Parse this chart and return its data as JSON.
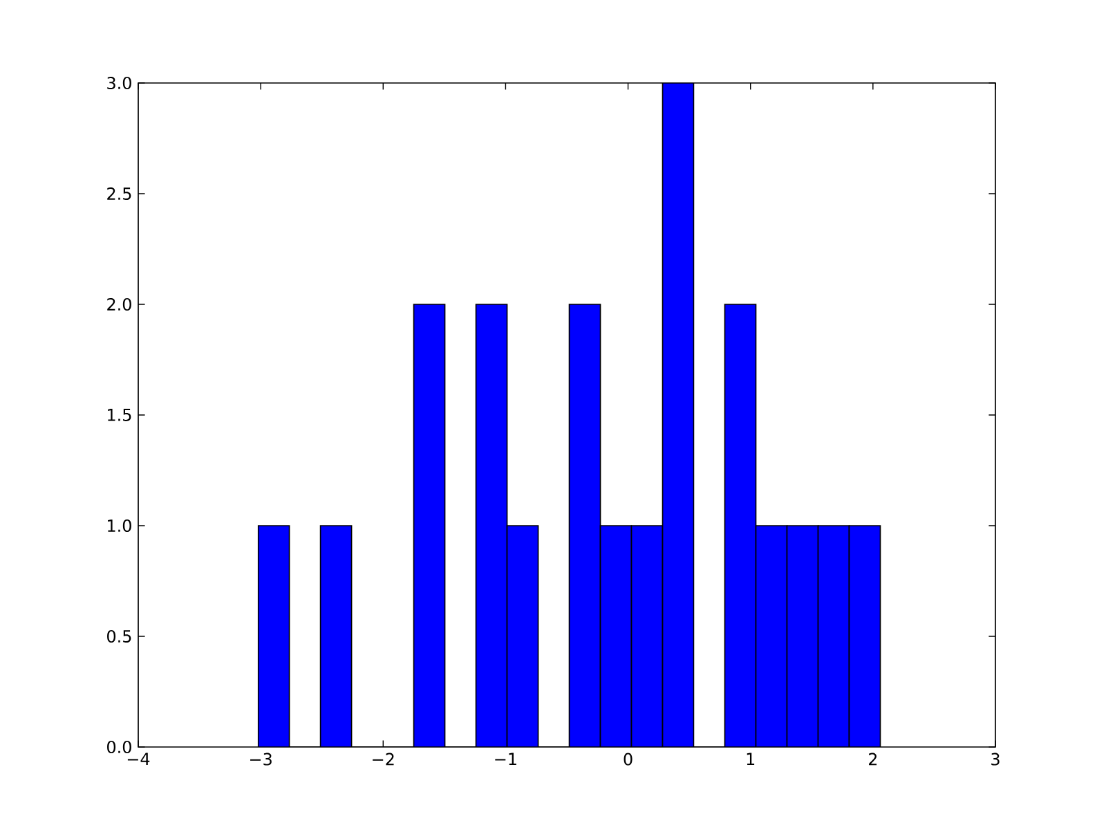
{
  "chart_data": {
    "type": "histogram",
    "bins": [
      -3.02,
      -2.766,
      -2.512,
      -2.258,
      -2.004,
      -1.75,
      -1.496,
      -1.242,
      -0.988,
      -0.734,
      -0.48,
      -0.226,
      0.028,
      0.282,
      0.536,
      0.79,
      1.044,
      1.298,
      1.552,
      1.806,
      2.06
    ],
    "values": [
      1,
      0,
      1,
      0,
      0,
      2,
      0,
      2,
      1,
      0,
      2,
      1,
      1,
      3,
      0,
      2,
      1,
      1,
      1,
      1
    ],
    "color": "#0000ff",
    "xlim": [
      -4,
      3
    ],
    "xticks": [
      {
        "value": -4,
        "label": "−4"
      },
      {
        "value": -3,
        "label": "−3"
      },
      {
        "value": -2,
        "label": "−2"
      },
      {
        "value": -1,
        "label": "−1"
      },
      0,
      1,
      2,
      3
    ],
    "ylim": [
      0,
      3
    ],
    "yticks": [
      {
        "value": 0,
        "label": "0.0"
      },
      {
        "value": 0.5,
        "label": "0.5"
      },
      {
        "value": 1,
        "label": "1.0"
      },
      {
        "value": 1.5,
        "label": "1.5"
      },
      {
        "value": 2,
        "label": "2.0"
      },
      {
        "value": 2.5,
        "label": "2.5"
      },
      {
        "value": 3,
        "label": "3.0"
      }
    ],
    "grid": false
  }
}
